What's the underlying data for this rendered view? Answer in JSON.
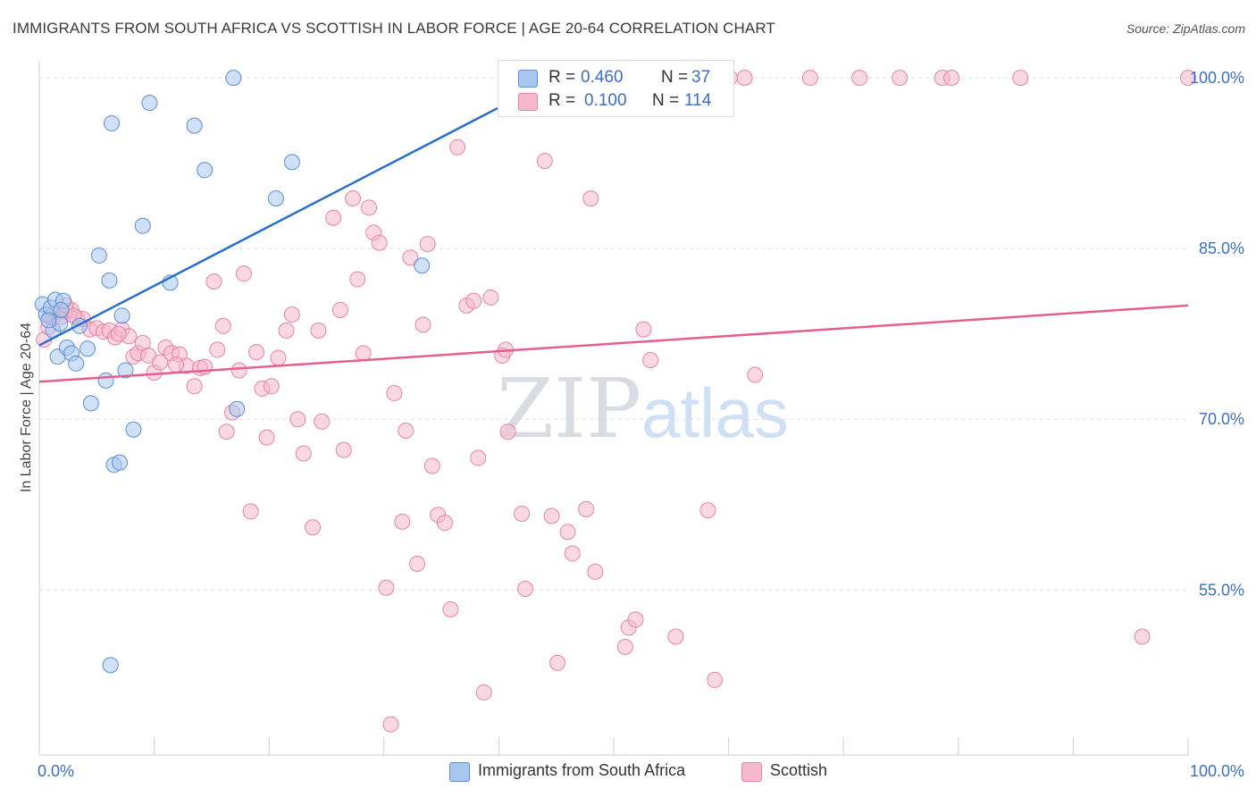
{
  "title": "IMMIGRANTS FROM SOUTH AFRICA VS SCOTTISH IN LABOR FORCE | AGE 20-64 CORRELATION CHART",
  "source": "Source: ZipAtlas.com",
  "watermark": {
    "zip": "ZIP",
    "atlas": "atlas"
  },
  "legend": {
    "rows": [
      {
        "r_label": "R =",
        "r_value": "0.460",
        "n_label": "N =",
        "n_value": "37"
      },
      {
        "r_label": "R =",
        "r_value": "0.100",
        "n_label": "N =",
        "n_value": "114"
      }
    ]
  },
  "chart_data": {
    "type": "scatter",
    "ylabel": "In Labor Force | Age 20-64",
    "xlim": [
      0,
      100
    ],
    "ylim": [
      40.5,
      101.5
    ],
    "x_tick_labels": [
      "0.0%",
      "100.0%"
    ],
    "y_ticks": [
      {
        "value": 55,
        "label": "55.0%"
      },
      {
        "value": 70,
        "label": "70.0%"
      },
      {
        "value": 85,
        "label": "85.0%"
      },
      {
        "value": 100,
        "label": "100.0%"
      }
    ],
    "colors": {
      "blue_fill": "#a9c6ee",
      "blue_stroke": "#5b8fd6",
      "blue_line": "#2b6fcc",
      "pink_fill": "#f6b8cc",
      "pink_stroke": "#e684a6",
      "pink_line": "#e35f8f",
      "value_text": "#3a6fc4"
    },
    "series": [
      {
        "name": "Immigrants from South Africa",
        "trend": {
          "x": [
            0,
            45
          ],
          "y": [
            76.5,
            100
          ]
        },
        "points": [
          [
            0.3,
            80.1
          ],
          [
            0.6,
            79.2
          ],
          [
            1.0,
            79.8
          ],
          [
            1.2,
            77.8
          ],
          [
            1.4,
            80.5
          ],
          [
            1.6,
            75.5
          ],
          [
            1.8,
            78.4
          ],
          [
            2.1,
            80.4
          ],
          [
            2.4,
            76.3
          ],
          [
            2.8,
            75.8
          ],
          [
            3.2,
            74.9
          ],
          [
            3.5,
            78.2
          ],
          [
            4.2,
            76.2
          ],
          [
            4.5,
            71.4
          ],
          [
            5.2,
            84.4
          ],
          [
            5.8,
            73.4
          ],
          [
            6.1,
            82.2
          ],
          [
            6.3,
            96.0
          ],
          [
            6.5,
            66.0
          ],
          [
            7.0,
            66.2
          ],
          [
            7.2,
            79.1
          ],
          [
            7.5,
            74.3
          ],
          [
            8.2,
            69.1
          ],
          [
            9.0,
            87.0
          ],
          [
            9.6,
            97.8
          ],
          [
            11.4,
            82.0
          ],
          [
            13.5,
            95.8
          ],
          [
            14.4,
            91.9
          ],
          [
            16.9,
            100.0
          ],
          [
            17.2,
            70.9
          ],
          [
            20.6,
            89.4
          ],
          [
            22.0,
            92.6
          ],
          [
            33.3,
            83.5
          ],
          [
            44.0,
            100.0
          ],
          [
            0.8,
            78.7
          ],
          [
            1.9,
            79.6
          ],
          [
            6.2,
            48.4
          ]
        ]
      },
      {
        "name": "Scottish",
        "trend": {
          "x": [
            0,
            100
          ],
          "y": [
            73.3,
            80.0
          ]
        },
        "points": [
          [
            0.4,
            77.0
          ],
          [
            0.8,
            78.1
          ],
          [
            1.2,
            78.9
          ],
          [
            1.5,
            79.3
          ],
          [
            1.9,
            79.0
          ],
          [
            2.4,
            79.5
          ],
          [
            2.8,
            79.6
          ],
          [
            3.3,
            78.9
          ],
          [
            3.8,
            78.8
          ],
          [
            4.4,
            77.9
          ],
          [
            5.0,
            78.0
          ],
          [
            5.6,
            77.7
          ],
          [
            6.1,
            77.8
          ],
          [
            6.6,
            77.2
          ],
          [
            7.2,
            77.9
          ],
          [
            7.8,
            77.3
          ],
          [
            8.2,
            75.5
          ],
          [
            8.6,
            75.8
          ],
          [
            9.0,
            76.7
          ],
          [
            9.5,
            75.6
          ],
          [
            10.0,
            74.1
          ],
          [
            10.5,
            75.0
          ],
          [
            11.0,
            76.3
          ],
          [
            11.5,
            75.8
          ],
          [
            12.2,
            75.7
          ],
          [
            12.8,
            74.7
          ],
          [
            13.5,
            72.9
          ],
          [
            14.0,
            74.5
          ],
          [
            14.4,
            74.6
          ],
          [
            15.2,
            82.1
          ],
          [
            15.5,
            76.1
          ],
          [
            16.0,
            78.2
          ],
          [
            16.3,
            68.9
          ],
          [
            16.8,
            70.6
          ],
          [
            17.4,
            74.3
          ],
          [
            17.8,
            82.8
          ],
          [
            18.4,
            61.9
          ],
          [
            18.9,
            75.9
          ],
          [
            19.4,
            72.7
          ],
          [
            19.8,
            68.4
          ],
          [
            20.2,
            72.9
          ],
          [
            20.8,
            75.4
          ],
          [
            21.5,
            77.8
          ],
          [
            22.0,
            79.2
          ],
          [
            22.5,
            70.0
          ],
          [
            23.0,
            67.0
          ],
          [
            23.8,
            60.5
          ],
          [
            24.3,
            77.8
          ],
          [
            24.6,
            69.8
          ],
          [
            25.6,
            87.7
          ],
          [
            26.2,
            79.6
          ],
          [
            26.5,
            67.3
          ],
          [
            27.3,
            89.4
          ],
          [
            27.7,
            82.3
          ],
          [
            28.2,
            75.8
          ],
          [
            28.7,
            88.6
          ],
          [
            29.1,
            86.4
          ],
          [
            29.6,
            85.5
          ],
          [
            30.2,
            55.2
          ],
          [
            30.6,
            43.2
          ],
          [
            30.9,
            72.3
          ],
          [
            31.6,
            61.0
          ],
          [
            31.9,
            69.0
          ],
          [
            32.3,
            84.2
          ],
          [
            32.9,
            57.3
          ],
          [
            33.4,
            78.3
          ],
          [
            33.8,
            85.4
          ],
          [
            34.2,
            65.9
          ],
          [
            34.7,
            61.6
          ],
          [
            35.3,
            60.9
          ],
          [
            35.8,
            53.3
          ],
          [
            36.4,
            93.9
          ],
          [
            37.2,
            80.0
          ],
          [
            37.8,
            80.4
          ],
          [
            38.2,
            66.6
          ],
          [
            38.7,
            46.0
          ],
          [
            39.3,
            80.7
          ],
          [
            40.3,
            75.6
          ],
          [
            40.6,
            76.1
          ],
          [
            40.8,
            68.9
          ],
          [
            42.0,
            61.7
          ],
          [
            42.3,
            55.1
          ],
          [
            44.0,
            92.7
          ],
          [
            44.6,
            61.5
          ],
          [
            45.1,
            48.6
          ],
          [
            46.0,
            60.1
          ],
          [
            46.4,
            58.2
          ],
          [
            47.6,
            62.1
          ],
          [
            48.0,
            89.4
          ],
          [
            48.4,
            56.6
          ],
          [
            51.0,
            50.0
          ],
          [
            51.3,
            51.7
          ],
          [
            51.9,
            52.4
          ],
          [
            52.6,
            77.9
          ],
          [
            53.2,
            75.2
          ],
          [
            55.4,
            50.9
          ],
          [
            58.2,
            62.0
          ],
          [
            58.8,
            47.1
          ],
          [
            60.1,
            100.0
          ],
          [
            61.4,
            100.0
          ],
          [
            62.3,
            73.9
          ],
          [
            67.1,
            100.0
          ],
          [
            71.4,
            100.0
          ],
          [
            74.9,
            100.0
          ],
          [
            78.6,
            100.0
          ],
          [
            79.4,
            100.0
          ],
          [
            85.4,
            100.0
          ],
          [
            96.0,
            50.9
          ],
          [
            100.0,
            100.0
          ],
          [
            0.9,
            79.0
          ],
          [
            2.3,
            80.0
          ],
          [
            3.0,
            79.1
          ],
          [
            6.9,
            77.5
          ],
          [
            11.9,
            74.8
          ]
        ]
      }
    ],
    "legend_position": "top-center"
  }
}
